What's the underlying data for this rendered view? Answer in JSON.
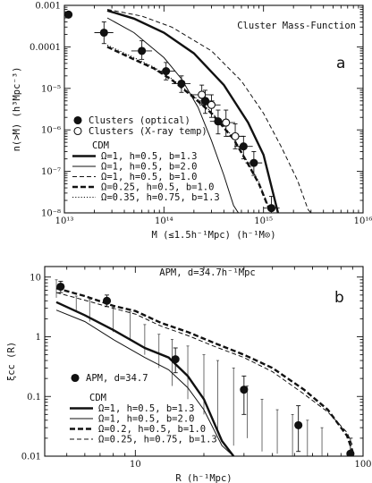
{
  "chart_data": [
    {
      "type": "line",
      "title": "Cluster Mass-Function",
      "panel_label": "a",
      "xlabel": "M (≤1.5h⁻¹Mpc) (h⁻¹M⊙)",
      "ylabel": "n(>M) (h³Mpc⁻³)",
      "x_scale": "log",
      "y_scale": "log",
      "xlim": [
        10000000000000.0,
        1e+16
      ],
      "ylim": [
        1e-08,
        0.001
      ],
      "x_ticks": [
        {
          "v": 10000000000000.0,
          "label": "10¹³"
        },
        {
          "v": 100000000000000.0,
          "label": "10¹⁴"
        },
        {
          "v": 1000000000000000.0,
          "label": "10¹⁵"
        },
        {
          "v": 1e+16,
          "label": "10¹⁶"
        }
      ],
      "y_ticks": [
        {
          "v": 0.001,
          "label": "0.001"
        },
        {
          "v": 0.0001,
          "label": "0.0001"
        },
        {
          "v": 1e-05,
          "label": "10⁻⁵"
        },
        {
          "v": 1e-06,
          "label": "10⁻⁶"
        },
        {
          "v": 1e-07,
          "label": "10⁻⁷"
        },
        {
          "v": 1e-08,
          "label": "10⁻⁸"
        }
      ],
      "legend_title": "CDM",
      "series": [
        {
          "name": "Ω=1, h=0.5, b=1.3",
          "style": "thick",
          "x": [
            27000000000000.0,
            50000000000000.0,
            100000000000000.0,
            200000000000000.0,
            400000000000000.0,
            700000000000000.0,
            1000000000000000.0,
            1300000000000000.0,
            1400000000000000.0
          ],
          "y": [
            0.00075,
            0.00048,
            0.00022,
            7e-05,
            1.2e-05,
            1.5e-06,
            2.5e-07,
            2e-08,
            1e-08
          ]
        },
        {
          "name": "Ω=1, h=0.5, b=2.0",
          "style": "thin",
          "x": [
            27000000000000.0,
            50000000000000.0,
            100000000000000.0,
            150000000000000.0,
            220000000000000.0,
            300000000000000.0,
            400000000000000.0,
            500000000000000.0,
            560000000000000.0
          ],
          "y": [
            0.0005,
            0.00022,
            5.5e-05,
            1.7e-05,
            3.5e-06,
            5.5e-07,
            8e-08,
            1.5e-08,
            1e-08
          ]
        },
        {
          "name": "Ω=1, h=0.5, b=1.0",
          "style": "dashed",
          "x": [
            27000000000000.0,
            60000000000000.0,
            120000000000000.0,
            300000000000000.0,
            600000000000000.0,
            1000000000000000.0,
            1500000000000000.0,
            2200000000000000.0,
            2800000000000000.0,
            3000000000000000.0
          ],
          "y": [
            0.0008,
            0.00055,
            0.0003,
            8e-05,
            1.5e-05,
            2.5e-06,
            4e-07,
            6e-08,
            1.2e-08,
            1e-08
          ]
        },
        {
          "name": "Ω=0.25, h=0.5, b=1.0",
          "style": "thick-dashed",
          "x": [
            27000000000000.0,
            50000000000000.0,
            80000000000000.0,
            120000000000000.0,
            200000000000000.0,
            300000000000000.0,
            500000000000000.0,
            700000000000000.0,
            900000000000000.0,
            1100000000000000.0,
            1200000000000000.0
          ],
          "y": [
            0.0001,
            5e-05,
            3e-05,
            1.6e-05,
            6e-06,
            2.5e-06,
            6e-07,
            1.5e-07,
            5e-08,
            1.5e-08,
            1e-08
          ]
        },
        {
          "name": "Ω=0.35, h=0.75, b=1.3",
          "style": "dotted",
          "x": [
            27000000000000.0,
            50000000000000.0,
            80000000000000.0,
            120000000000000.0,
            200000000000000.0,
            300000000000000.0,
            500000000000000.0,
            700000000000000.0,
            900000000000000.0,
            1100000000000000.0,
            1200000000000000.0
          ],
          "y": [
            0.00011,
            5.5e-05,
            3.2e-05,
            1.7e-05,
            6.5e-06,
            2.7e-06,
            6.5e-07,
            1.6e-07,
            5.5e-08,
            1.6e-08,
            1e-08
          ]
        }
      ],
      "points": [
        {
          "name": "Clusters (optical)",
          "marker": "filled",
          "data": [
            {
              "x": 11000000000000.0,
              "y": 0.0006,
              "xerr": [
                10300000000000.0,
                12000000000000.0
              ]
            },
            {
              "x": 25000000000000.0,
              "y": 0.00022,
              "xerr": [
                20000000000000.0,
                31000000000000.0
              ],
              "yerr": [
                0.00012,
                0.0004
              ]
            },
            {
              "x": 60000000000000.0,
              "y": 8e-05,
              "xerr": [
                47000000000000.0,
                76000000000000.0
              ],
              "yerr": [
                5e-05,
                0.00014
              ]
            },
            {
              "x": 105000000000000.0,
              "y": 2.6e-05,
              "xerr": [
                85000000000000.0,
                130000000000000.0
              ],
              "yerr": [
                1.6e-05,
                4.2e-05
              ]
            },
            {
              "x": 150000000000000.0,
              "y": 1.3e-05,
              "xerr": [
                120000000000000.0,
                185000000000000.0
              ],
              "yerr": [
                8e-06,
                2e-05
              ]
            },
            {
              "x": 260000000000000.0,
              "y": 5e-06,
              "xerr": [
                210000000000000.0,
                320000000000000.0
              ],
              "yerr": [
                2.5e-06,
                9e-06
              ]
            },
            {
              "x": 350000000000000.0,
              "y": 1.6e-06,
              "xerr": [
                290000000000000.0,
                430000000000000.0
              ],
              "yerr": [
                8e-07,
                3e-06
              ]
            },
            {
              "x": 630000000000000.0,
              "y": 4e-07,
              "xerr": [
                510000000000000.0,
                780000000000000.0
              ],
              "yerr": [
                2e-07,
                7e-07
              ]
            },
            {
              "x": 800000000000000.0,
              "y": 1.6e-07,
              "xerr": [
                660000000000000.0,
                970000000000000.0
              ],
              "yerr": [
                8e-08,
                3e-07
              ]
            },
            {
              "x": 1200000000000000.0,
              "y": 1.3e-08,
              "xerr": [
                1000000000000000.0,
                1450000000000000.0
              ],
              "yerr": [
                1e-08,
                2.5e-08
              ]
            }
          ]
        },
        {
          "name": "Clusters (X-ray temp)",
          "marker": "open",
          "data": [
            {
              "x": 240000000000000.0,
              "y": 7e-06,
              "xerr": [
                190000000000000.0,
                300000000000000.0
              ],
              "yerr": [
                4e-06,
                1.2e-05
              ]
            },
            {
              "x": 300000000000000.0,
              "y": 4e-06,
              "xerr": [
                240000000000000.0,
                370000000000000.0
              ],
              "yerr": [
                2e-06,
                7e-06
              ]
            },
            {
              "x": 420000000000000.0,
              "y": 1.5e-06,
              "xerr": [
                340000000000000.0,
                520000000000000.0
              ],
              "yerr": [
                7e-07,
                3e-06
              ]
            },
            {
              "x": 520000000000000.0,
              "y": 7e-07,
              "xerr": [
                420000000000000.0,
                640000000000000.0
              ],
              "yerr": [
                3.5e-07,
                1.4e-06
              ]
            }
          ]
        }
      ]
    },
    {
      "type": "line",
      "title": "APM, d=34.7h⁻¹Mpc",
      "panel_label": "b",
      "xlabel": "R (h⁻¹Mpc)",
      "ylabel": "ξcc (R)",
      "x_scale": "log",
      "y_scale": "log",
      "xlim": [
        4,
        100
      ],
      "ylim": [
        0.01,
        15
      ],
      "x_ticks": [
        {
          "v": 10,
          "label": "10"
        },
        {
          "v": 100,
          "label": "100"
        }
      ],
      "y_ticks": [
        {
          "v": 10,
          "label": "10"
        },
        {
          "v": 1,
          "label": "1"
        },
        {
          "v": 0.1,
          "label": "0.1"
        },
        {
          "v": 0.01,
          "label": "0.01"
        }
      ],
      "legend_title": "CDM",
      "series": [
        {
          "name": "Ω=1, h=0.5, b=1.3",
          "style": "thick",
          "x": [
            4.5,
            6,
            8,
            11,
            14,
            17,
            20,
            24,
            27
          ],
          "y": [
            3.8,
            2.3,
            1.3,
            0.65,
            0.45,
            0.22,
            0.09,
            0.018,
            0.01
          ]
        },
        {
          "name": "Ω=1, h=0.5, b=2.0",
          "style": "thin",
          "x": [
            4.5,
            6,
            8,
            11,
            14,
            17,
            20,
            24,
            27
          ],
          "y": [
            2.8,
            1.8,
            0.9,
            0.45,
            0.28,
            0.14,
            0.06,
            0.015,
            0.01
          ]
        },
        {
          "name": "Ω=0.2, h=0.5, b=1.0",
          "style": "thick-dashed",
          "x": [
            4.5,
            6,
            8,
            10,
            13,
            17,
            22,
            30,
            40,
            55,
            70,
            85,
            90
          ],
          "y": [
            6.5,
            4.8,
            3.3,
            2.7,
            1.7,
            1.2,
            0.8,
            0.5,
            0.3,
            0.13,
            0.06,
            0.022,
            0.012
          ]
        },
        {
          "name": "Ω=0.25, h=0.75, b=1.3",
          "style": "dashed",
          "x": [
            4.5,
            6,
            8,
            10,
            13,
            17,
            22,
            30,
            40,
            55,
            70,
            85,
            90
          ],
          "y": [
            5.5,
            4.1,
            3.0,
            2.4,
            1.5,
            1.05,
            0.7,
            0.45,
            0.26,
            0.11,
            0.055,
            0.025,
            0.015
          ]
        }
      ],
      "points": [
        {
          "name": "APM, d=34.7",
          "marker": "filled",
          "data": [
            {
              "x": 4.7,
              "y": 6.9,
              "yerr": [
                5.5,
                8.5
              ]
            },
            {
              "x": 7.5,
              "y": 4.0,
              "yerr": [
                3.2,
                5.0
              ]
            },
            {
              "x": 15,
              "y": 0.42,
              "yerr": [
                0.25,
                0.65
              ]
            },
            {
              "x": 30,
              "y": 0.13,
              "yerr": [
                0.05,
                0.22
              ]
            },
            {
              "x": 52,
              "y": 0.033,
              "yerr": [
                0.012,
                0.07
              ]
            },
            {
              "x": 88,
              "y": 0.011,
              "yerr": [
                0.006,
                0.02
              ]
            }
          ]
        }
      ],
      "model_error_bars": [
        {
          "x": 4.5,
          "lo": 4.5,
          "hi": 9
        },
        {
          "x": 5.5,
          "lo": 2.6,
          "hi": 4.8
        },
        {
          "x": 6.3,
          "lo": 1.8,
          "hi": 4.2
        },
        {
          "x": 8,
          "lo": 1.2,
          "hi": 3.1
        },
        {
          "x": 9.5,
          "lo": 0.9,
          "hi": 2.6
        },
        {
          "x": 11,
          "lo": 0.5,
          "hi": 1.6
        },
        {
          "x": 12.7,
          "lo": 0.3,
          "hi": 1.1
        },
        {
          "x": 14.5,
          "lo": 0.15,
          "hi": 0.9
        },
        {
          "x": 17,
          "lo": 0.09,
          "hi": 0.7
        },
        {
          "x": 20,
          "lo": 0.05,
          "hi": 0.5
        },
        {
          "x": 23,
          "lo": 0.028,
          "hi": 0.4
        },
        {
          "x": 27,
          "lo": 0.015,
          "hi": 0.3
        },
        {
          "x": 31,
          "lo": 0.02,
          "hi": 0.15
        },
        {
          "x": 36,
          "lo": 0.012,
          "hi": 0.09
        },
        {
          "x": 42,
          "lo": 0.011,
          "hi": 0.06
        },
        {
          "x": 49,
          "lo": 0.01,
          "hi": 0.05
        },
        {
          "x": 57,
          "lo": 0.01,
          "hi": 0.04
        },
        {
          "x": 66,
          "lo": 0.01,
          "hi": 0.03
        }
      ]
    }
  ]
}
